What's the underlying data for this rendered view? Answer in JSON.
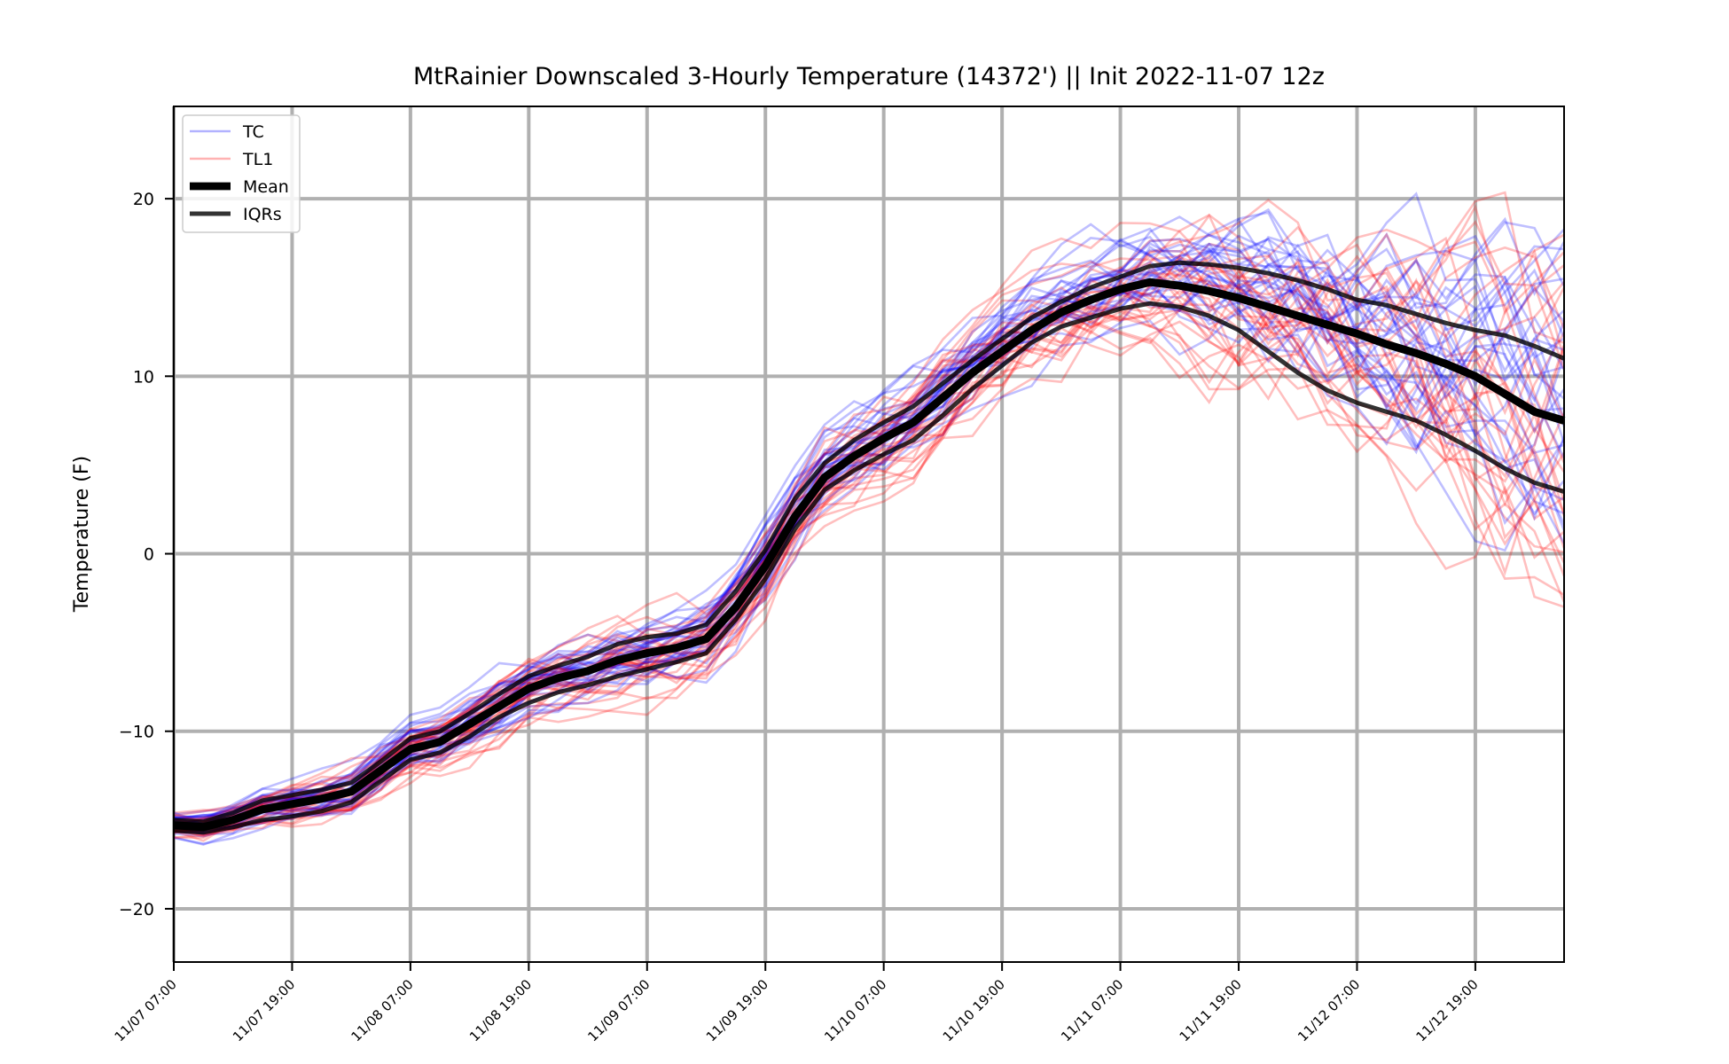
{
  "chart_data": {
    "type": "line",
    "title": "MtRainier Downscaled 3-Hourly Temperature (14372') || Init 2022-11-07 12z",
    "xlabel": "",
    "ylabel": "Temperature (F)",
    "x_unit": "hours since 11/07 07:00",
    "xlim": [
      0,
      141
    ],
    "ylim": [
      -23,
      25.2
    ],
    "yticks": [
      -20,
      -10,
      0,
      10,
      20
    ],
    "yticklabels": [
      "−20",
      "−10",
      "0",
      "10",
      "20"
    ],
    "xticks": [
      0,
      12,
      24,
      36,
      48,
      60,
      72,
      84,
      96,
      108,
      120,
      132
    ],
    "xticklabels": [
      "11/07 07:00",
      "11/07 19:00",
      "11/08 07:00",
      "11/08 19:00",
      "11/09 07:00",
      "11/09 19:00",
      "11/10 07:00",
      "11/10 19:00",
      "11/11 07:00",
      "11/11 19:00",
      "11/12 07:00",
      "11/12 19:00"
    ],
    "grid": true,
    "legend_position": "top-left",
    "legend": [
      {
        "label": "TC",
        "color": "#0000ff",
        "alpha": 0.3,
        "width": 2
      },
      {
        "label": "TL1",
        "color": "#ff0000",
        "alpha": 0.3,
        "width": 2
      },
      {
        "label": "Mean",
        "color": "#000000",
        "alpha": 1,
        "width": 7
      },
      {
        "label": "IQRs",
        "color": "#000000",
        "alpha": 0.8,
        "width": 4
      }
    ],
    "x": [
      0,
      3,
      6,
      9,
      12,
      15,
      18,
      21,
      24,
      27,
      30,
      33,
      36,
      39,
      42,
      45,
      48,
      51,
      54,
      57,
      60,
      63,
      66,
      69,
      72,
      75,
      78,
      81,
      84,
      87,
      90,
      93,
      96,
      99,
      102,
      105,
      108,
      111,
      114,
      117,
      120,
      123,
      126,
      129,
      132,
      135,
      138,
      141
    ],
    "series": [
      {
        "name": "Mean",
        "role": "mean",
        "color": "#000000",
        "values": [
          -15.3,
          -15.4,
          -15.0,
          -14.4,
          -14.1,
          -13.8,
          -13.4,
          -12.2,
          -11.0,
          -10.6,
          -9.6,
          -8.6,
          -7.6,
          -7.0,
          -6.6,
          -6.0,
          -5.6,
          -5.3,
          -4.8,
          -3.0,
          -0.7,
          2.1,
          4.3,
          5.5,
          6.5,
          7.4,
          8.8,
          10.2,
          11.4,
          12.6,
          13.6,
          14.3,
          14.9,
          15.3,
          15.1,
          14.8,
          14.4,
          13.9,
          13.4,
          12.9,
          12.4,
          11.8,
          11.3,
          10.7,
          10.0,
          9.0,
          8.0,
          7.5
        ]
      },
      {
        "name": "IQR upper",
        "role": "iqr",
        "color": "#000000",
        "values": [
          -15.0,
          -15.1,
          -14.6,
          -13.9,
          -13.6,
          -13.3,
          -12.9,
          -11.7,
          -10.4,
          -10.0,
          -9.0,
          -7.9,
          -6.9,
          -6.3,
          -5.8,
          -5.1,
          -4.7,
          -4.5,
          -4.0,
          -2.1,
          0.2,
          3.1,
          5.1,
          6.4,
          7.4,
          8.3,
          9.6,
          10.9,
          12.1,
          13.3,
          14.2,
          15.0,
          15.6,
          16.2,
          16.4,
          16.3,
          16.1,
          15.8,
          15.4,
          14.9,
          14.3,
          14.0,
          13.5,
          13.0,
          12.6,
          12.3,
          11.7,
          11.0
        ]
      },
      {
        "name": "IQR lower",
        "role": "iqr",
        "color": "#000000",
        "values": [
          -15.6,
          -15.7,
          -15.4,
          -15.0,
          -14.8,
          -14.5,
          -14.0,
          -12.8,
          -11.6,
          -11.2,
          -10.3,
          -9.2,
          -8.4,
          -7.8,
          -7.4,
          -6.9,
          -6.5,
          -6.1,
          -5.6,
          -3.7,
          -1.4,
          1.4,
          3.6,
          4.7,
          5.6,
          6.4,
          7.8,
          9.3,
          10.6,
          11.9,
          12.8,
          13.3,
          13.8,
          14.1,
          13.9,
          13.4,
          12.6,
          11.4,
          10.2,
          9.2,
          8.5,
          8.0,
          7.5,
          6.7,
          5.8,
          4.8,
          4.0,
          3.5
        ]
      }
    ],
    "ensemble": {
      "note": "members",
      "count_tc": 30,
      "count_tl1": 30
    }
  }
}
